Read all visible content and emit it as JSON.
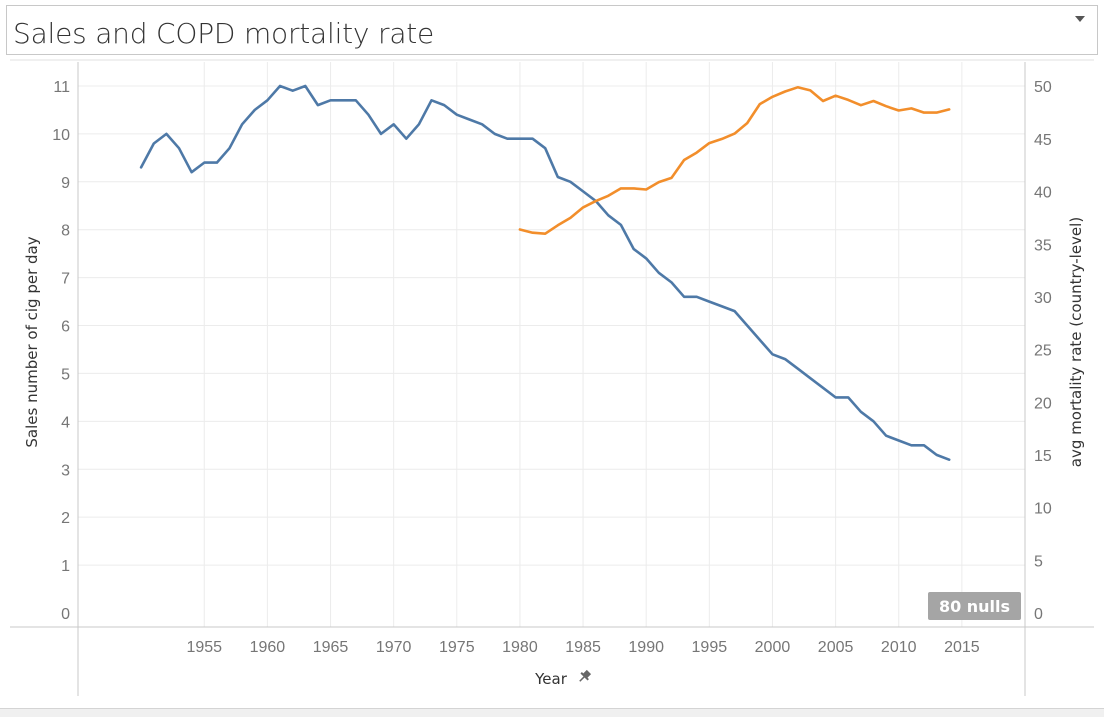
{
  "title": "Sales and COPD mortality rate",
  "nulls_badge": "80 nulls",
  "chart_data": {
    "type": "line",
    "title": "Sales and COPD mortality rate",
    "xlabel": "Year",
    "ylabel": "Sales number of cig per day",
    "y2label": "avg mortality rate (country-level)",
    "xlim": [
      1945,
      2020
    ],
    "ylim": [
      0,
      11.5
    ],
    "y2lim": [
      0,
      52.3
    ],
    "x_ticks": [
      1955,
      1960,
      1965,
      1970,
      1975,
      1980,
      1985,
      1990,
      1995,
      2000,
      2005,
      2010,
      2015
    ],
    "y_ticks": [
      0,
      1,
      2,
      3,
      4,
      5,
      6,
      7,
      8,
      9,
      10,
      11
    ],
    "y2_ticks": [
      0,
      5,
      10,
      15,
      20,
      25,
      30,
      35,
      40,
      45,
      50
    ],
    "grid": true,
    "colors": {
      "sales": "#4e79a7",
      "mortality": "#f28e2b",
      "badge": "#a5a5a5",
      "axis": "#c8c8c8",
      "grid": "#ececec"
    },
    "series": [
      {
        "axis": "left",
        "x": [
          1950,
          1951,
          1952,
          1953,
          1954,
          1955,
          1956,
          1957,
          1958,
          1959,
          1960,
          1961,
          1962,
          1963,
          1964,
          1965,
          1966,
          1967,
          1968,
          1969,
          1970,
          1971,
          1972,
          1973,
          1974,
          1975,
          1976,
          1977,
          1978,
          1979,
          1980,
          1981,
          1982,
          1983,
          1984,
          1985,
          1986,
          1987,
          1988,
          1989,
          1990,
          1991,
          1992,
          1993,
          1994,
          1995,
          1996,
          1997,
          1998,
          1999,
          2000,
          2001,
          2002,
          2003,
          2004,
          2005,
          2006,
          2007,
          2008,
          2009,
          2010,
          2011,
          2012,
          2013,
          2014
        ],
        "values": [
          9.3,
          9.8,
          10.0,
          9.7,
          9.2,
          9.4,
          9.4,
          9.7,
          10.2,
          10.5,
          10.7,
          11.0,
          10.9,
          11.0,
          10.6,
          10.7,
          10.7,
          10.7,
          10.4,
          10.0,
          10.2,
          9.9,
          10.2,
          10.7,
          10.6,
          10.4,
          10.3,
          10.2,
          10.0,
          9.9,
          9.9,
          9.9,
          9.7,
          9.1,
          9.0,
          8.8,
          8.6,
          8.3,
          8.1,
          7.6,
          7.4,
          7.1,
          6.9,
          6.6,
          6.6,
          6.5,
          6.4,
          6.3,
          6.0,
          5.7,
          5.4,
          5.3,
          5.1,
          4.9,
          4.7,
          4.5,
          4.5,
          4.2,
          4.0,
          3.7,
          3.6,
          3.5,
          3.5,
          3.3,
          3.2
        ]
      },
      {
        "axis": "right",
        "x": [
          1980,
          1981,
          1982,
          1983,
          1984,
          1985,
          1986,
          1987,
          1988,
          1989,
          1990,
          1991,
          1992,
          1993,
          1994,
          1995,
          1996,
          1997,
          1998,
          1999,
          2000,
          2001,
          2002,
          2003,
          2004,
          2005,
          2006,
          2007,
          2008,
          2009,
          2010,
          2011,
          2012,
          2013,
          2014
        ],
        "values": [
          36.4,
          36.1,
          36.0,
          36.8,
          37.5,
          38.5,
          39.1,
          39.6,
          40.3,
          40.3,
          40.2,
          40.9,
          41.3,
          43.0,
          43.7,
          44.6,
          45.0,
          45.5,
          46.5,
          48.3,
          49.0,
          49.5,
          49.9,
          49.6,
          48.6,
          49.1,
          48.7,
          48.2,
          48.6,
          48.1,
          47.7,
          47.9,
          47.5,
          47.5,
          47.8
        ]
      }
    ]
  }
}
